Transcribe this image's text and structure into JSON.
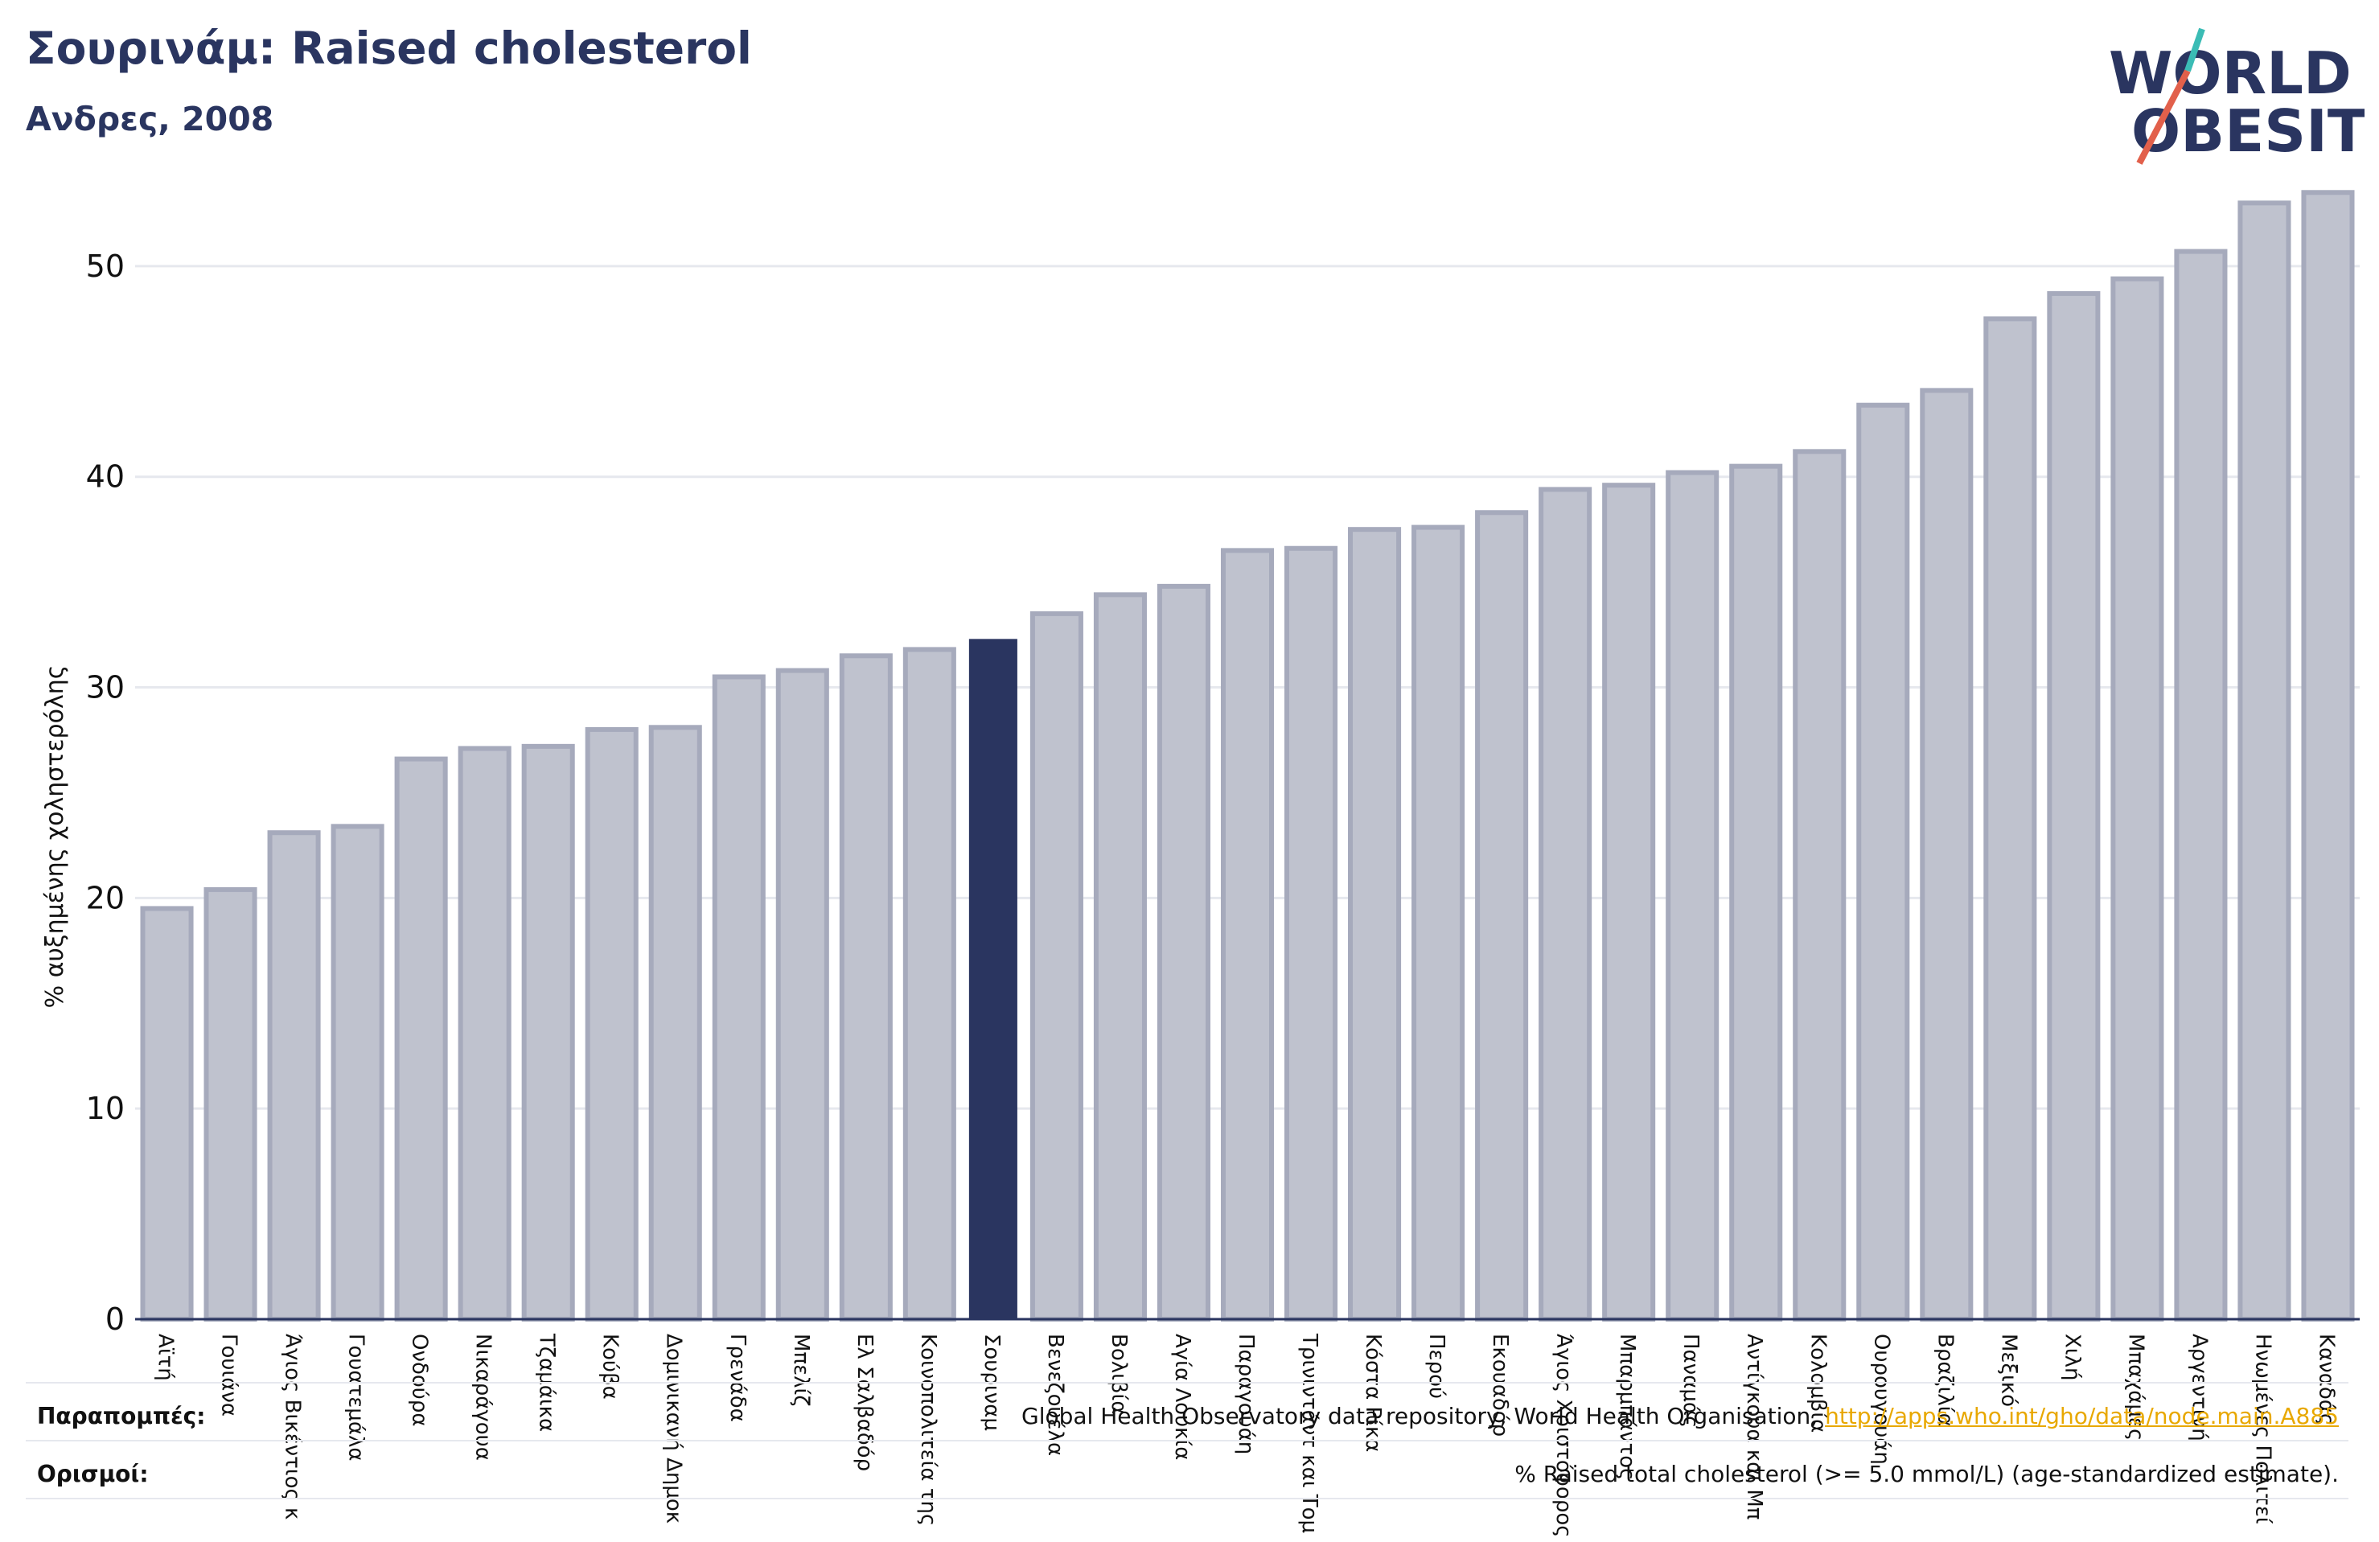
{
  "header": {
    "title": "Σουρινάμ: Raised cholesterol",
    "subtitle": "Ανδρες, 2008"
  },
  "logo": {
    "line1": "WORLD",
    "line2": "OBESITY",
    "colors": {
      "text": "#2a3560",
      "accent_red": "#e2604b",
      "accent_teal": "#3bbcb5"
    }
  },
  "colors": {
    "highlight_bar": "#2a3560",
    "other_bar_fill": "#bfc2ce",
    "other_bar_stroke": "#a6aabc",
    "axis": "#2a3560",
    "grid": "#e6e8ee",
    "link": "#e8a800"
  },
  "chart_data": {
    "type": "bar",
    "ylabel": "% αυξημένης χοληστερόλης",
    "ylim": [
      0,
      55
    ],
    "yticks": [
      0,
      10,
      20,
      30,
      40,
      50
    ],
    "grid": true,
    "highlight_index": 13,
    "categories": [
      "Αϊτή",
      "Γουιάνα",
      "Άγιος Βικέντιος κ",
      "Γουατεμάλα",
      "Ονδούρα",
      "Νικαράγουα",
      "Τζαμάικα",
      "Κούβα",
      "Δομινικανή Δημοκ",
      "Γρενάδα",
      "Μπελίζ",
      "Ελ Σαλβαδόρ",
      "Κοινοπολιτεία της",
      "Σουριναμ",
      "Βενεζουέλα",
      "Βολιβία",
      "Αγία Λουκία",
      "Παραγουάη",
      "Τρινιντάντ και Τομ",
      "Κόστα Ρίκα",
      "Περού",
      "Εκουαδόρ",
      "Άγιος Χριστόφορος",
      "Μπαρμπάντος",
      "Παναμάς",
      "Αντίγκουα και Μπ",
      "Κολομβία",
      "Ουρουγουάη",
      "Βραζιλία",
      "Μεξικό",
      "Χιλή",
      "Μπαχάμες",
      "Αργεντινή",
      "Ηνωμένες Πολιτεί",
      "Καναδάς"
    ],
    "values": [
      19.5,
      20.4,
      23.1,
      23.4,
      26.6,
      27.1,
      27.2,
      28.0,
      28.1,
      30.5,
      30.8,
      31.5,
      31.8,
      32.3,
      33.5,
      34.4,
      34.8,
      36.5,
      36.6,
      37.5,
      37.6,
      38.3,
      39.4,
      39.6,
      40.2,
      40.5,
      41.2,
      43.4,
      44.1,
      47.5,
      48.7,
      49.4,
      50.7,
      53.0,
      53.5
    ]
  },
  "references": {
    "sources_label": "Παραπομπές:",
    "sources_text": "Global Health Observatory data repository, World Health Organisation, ",
    "sources_link": "http://apps.who.int/gho/data/node.main.A885",
    "definitions_label": "Ορισμοί:",
    "definitions_text": "% Raised total cholesterol (>= 5.0 mmol/L) (age-standardized estimate)."
  }
}
